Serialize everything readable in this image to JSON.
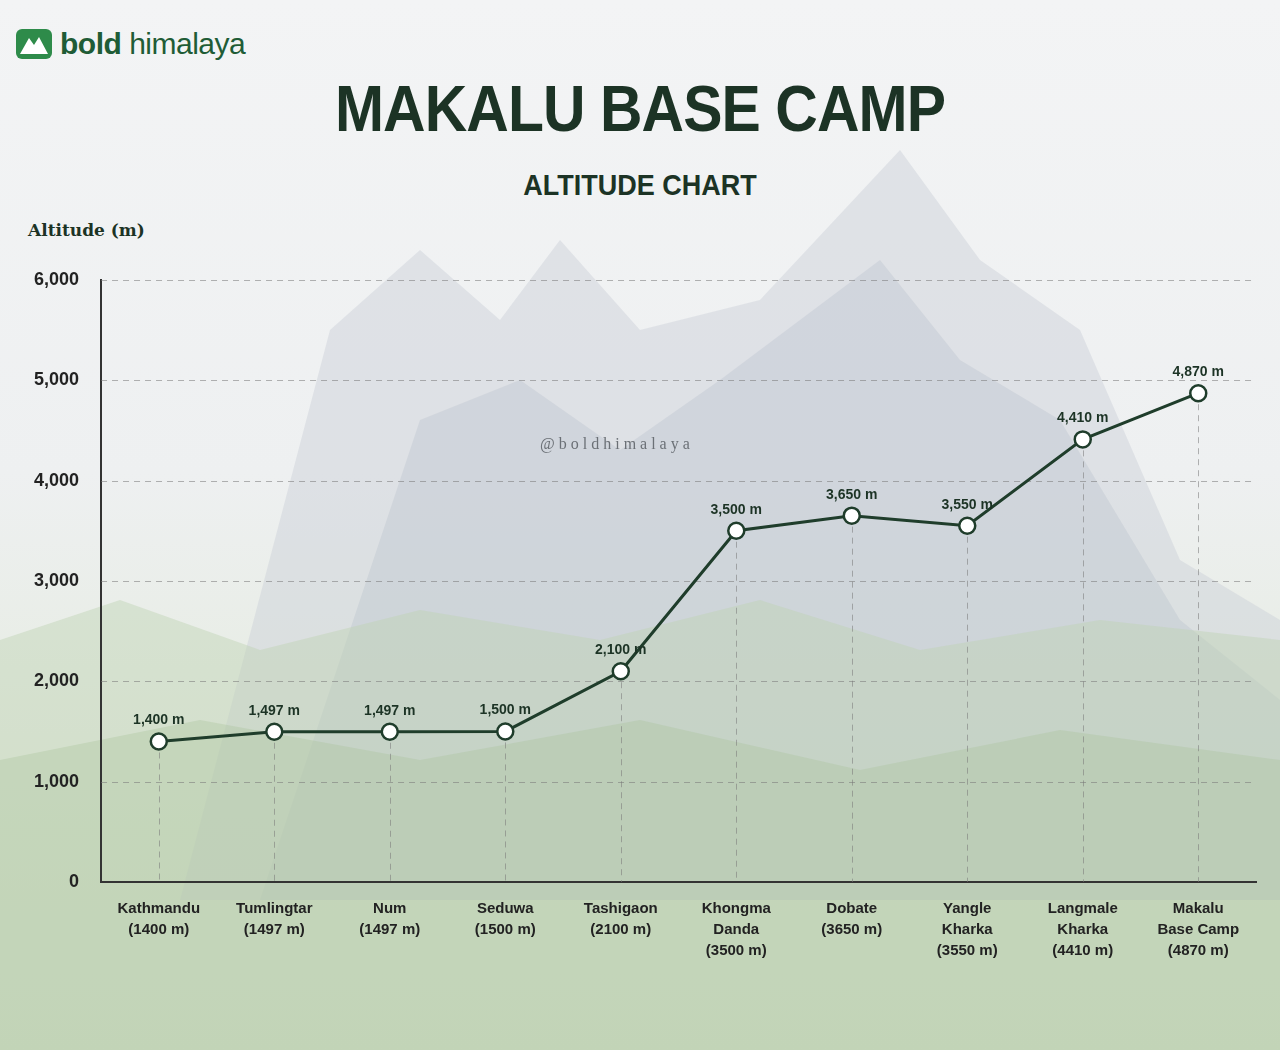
{
  "brand": "bold himalaya",
  "chart_data": {
    "type": "line",
    "title": "MAKALU BASE CAMP",
    "subtitle": "ALTITUDE CHART",
    "y_label": "Altitude (m)",
    "annotations": [
      "@boldhimalaya"
    ],
    "categories": [
      "Kathmandu (1400 m)",
      "Tumlingtar (1497 m)",
      "Num (1497 m)",
      "Seduwa (1500 m)",
      "Tashigaon (2100 m)",
      "Khongma Danda (3500 m)",
      "Dobate (3650 m)",
      "Yangle Kharka (3550 m)",
      "Langmale Kharka (4410 m)",
      "Makalu Base Camp (4870 m)"
    ],
    "values": [
      1400,
      1497,
      1497,
      1500,
      2100,
      3500,
      3650,
      3550,
      4410,
      4870
    ],
    "value_labels": [
      "1,400 m",
      "1,497 m",
      "1,497 m",
      "1,500 m",
      "2,100 m",
      "3,500 m",
      "3,650 m",
      "3,550 m",
      "4,410 m",
      "4,870 m"
    ],
    "data_labels": true,
    "color": "#1f3d2b",
    "marker": "circle",
    "line_style": "solid",
    "ylim": [
      0,
      6000
    ],
    "yticks": [
      0,
      {
        "value": 1000,
        "label": "1,000"
      },
      {
        "value": 2000,
        "label": "2,000"
      },
      {
        "value": 3000,
        "label": "3,000"
      },
      {
        "value": 4000,
        "label": "4,000"
      },
      {
        "value": 5000,
        "label": "5,000"
      },
      {
        "value": 6000,
        "label": "6,000"
      }
    ],
    "grid": true
  }
}
